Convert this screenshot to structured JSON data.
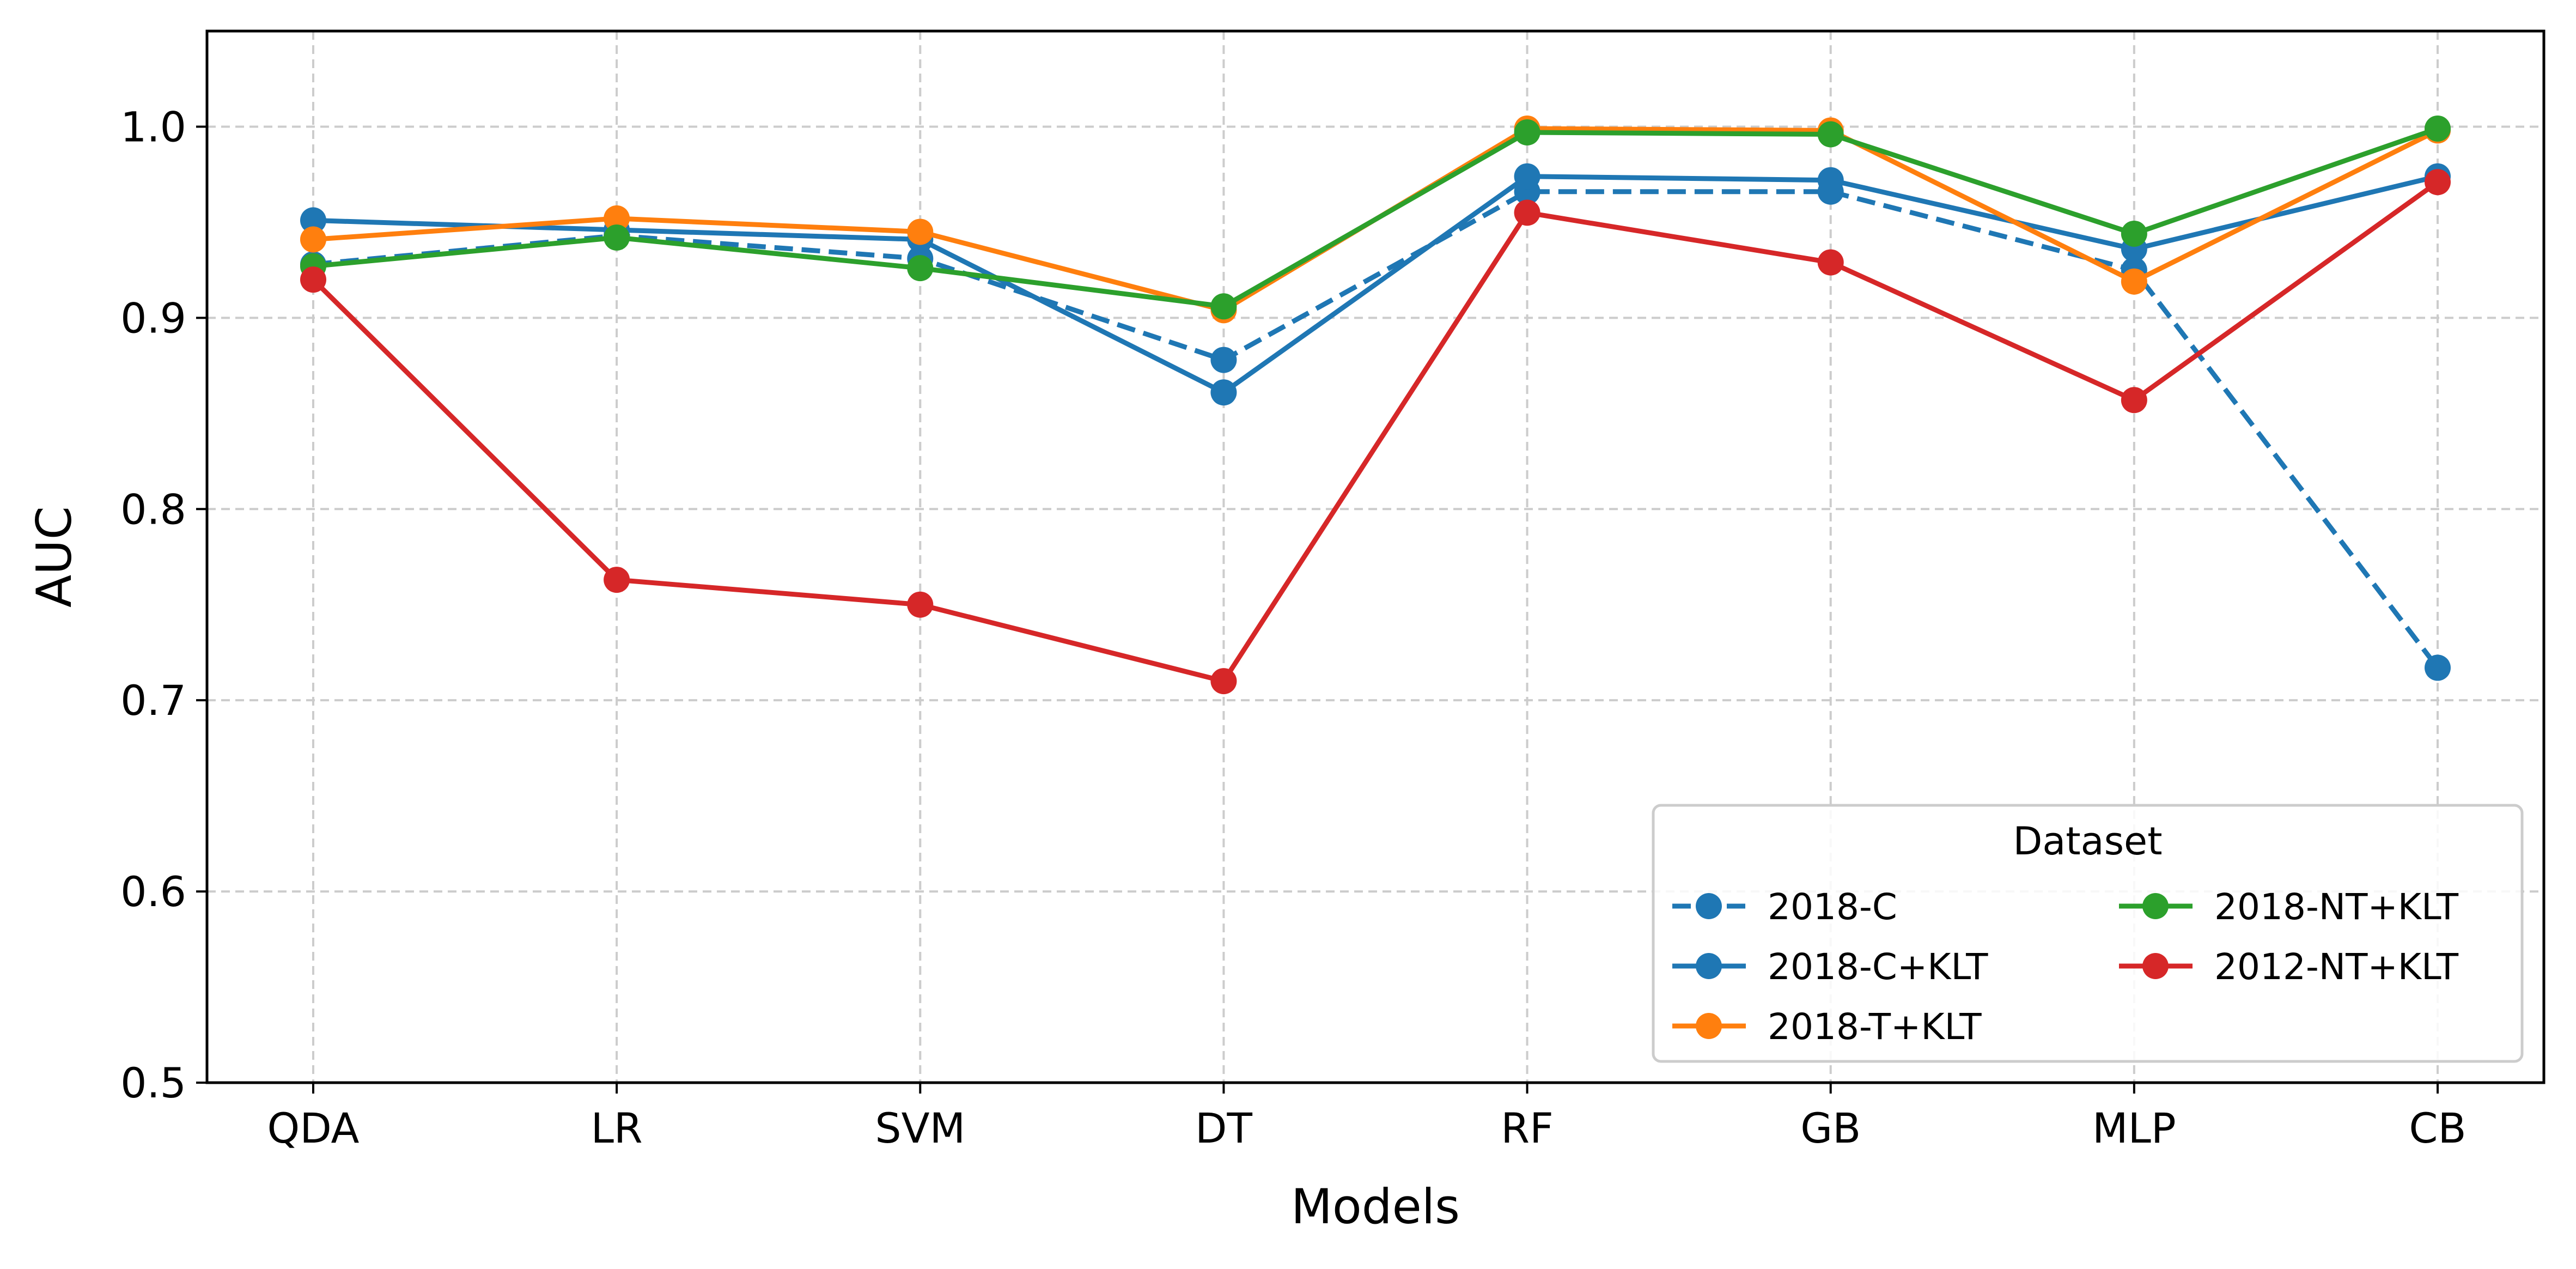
{
  "chart_data": {
    "type": "line",
    "title": "",
    "xlabel": "Models",
    "ylabel": "AUC",
    "categories": [
      "QDA",
      "LR",
      "SVM",
      "DT",
      "RF",
      "GB",
      "MLP",
      "CB"
    ],
    "ylim": [
      0.5,
      1.05
    ],
    "yticks": [
      0.5,
      0.6,
      0.7,
      0.8,
      0.9,
      1.0
    ],
    "ytick_labels": [
      "0.5",
      "0.6",
      "0.7",
      "0.8",
      "0.9",
      "1.0"
    ],
    "grid": true,
    "legend_title": "Dataset",
    "legend_location": "lower-right",
    "series": [
      {
        "name": "2018-C",
        "color": "#1f77b4",
        "style": "dashed",
        "values": [
          0.928,
          0.943,
          0.931,
          0.878,
          0.966,
          0.966,
          0.925,
          0.717
        ]
      },
      {
        "name": "2018-C+KLT",
        "color": "#1f77b4",
        "style": "solid",
        "values": [
          0.951,
          0.946,
          0.941,
          0.861,
          0.974,
          0.972,
          0.936,
          0.974
        ]
      },
      {
        "name": "2018-T+KLT",
        "color": "#ff7f0e",
        "style": "solid",
        "values": [
          0.941,
          0.952,
          0.945,
          0.904,
          0.999,
          0.998,
          0.919,
          0.998
        ]
      },
      {
        "name": "2018-NT+KLT",
        "color": "#2ca02c",
        "style": "solid",
        "values": [
          0.927,
          0.942,
          0.926,
          0.906,
          0.997,
          0.996,
          0.944,
          0.999
        ]
      },
      {
        "name": "2012-NT+KLT",
        "color": "#d62728",
        "style": "solid",
        "values": [
          0.92,
          0.763,
          0.75,
          0.71,
          0.955,
          0.929,
          0.857,
          0.971
        ]
      }
    ]
  }
}
